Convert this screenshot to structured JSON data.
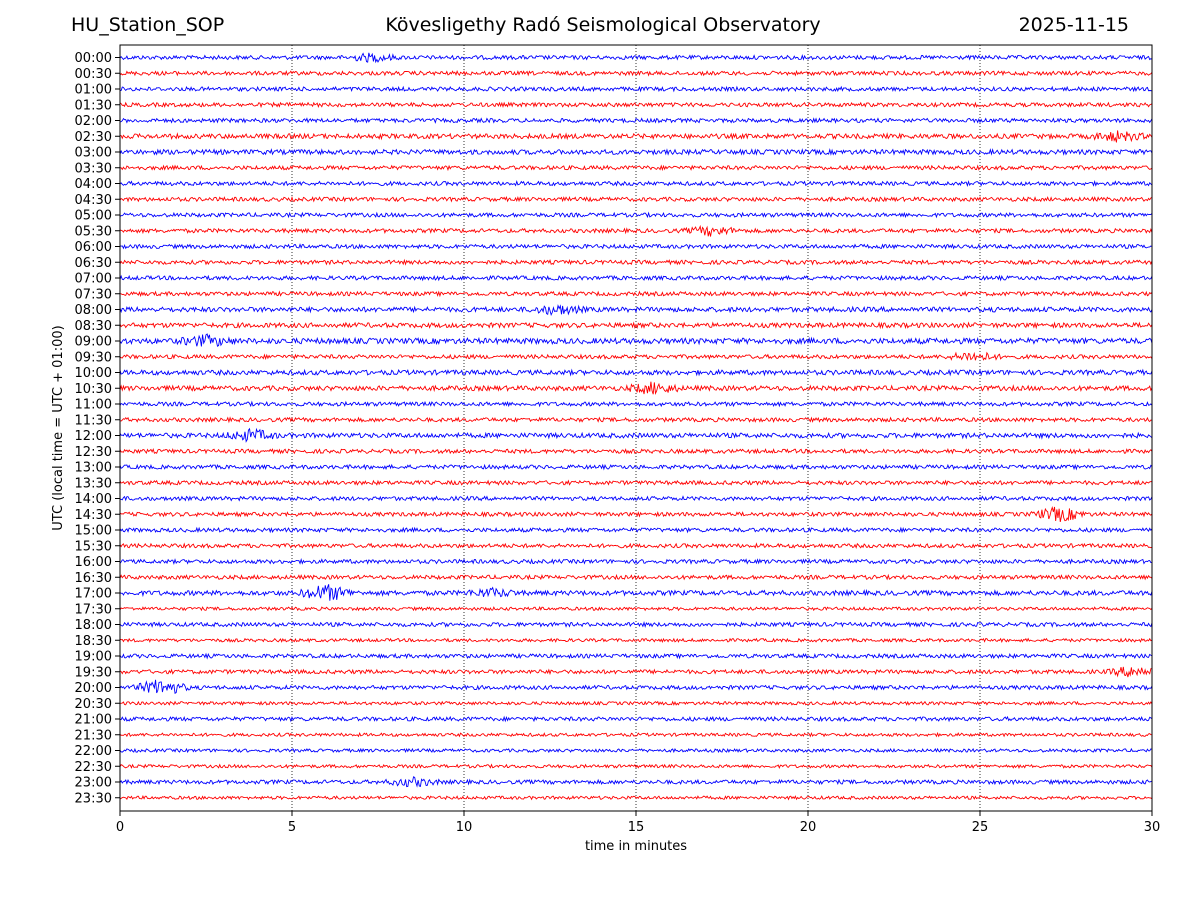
{
  "header": {
    "station": "HU_Station_SOP",
    "observatory": "Kövesligethy Radó Seismological Observatory",
    "date": "2025-11-15"
  },
  "chart_data": {
    "type": "line",
    "title": "Kövesligethy Radó Seismological Observatory",
    "xlabel": "time in minutes",
    "ylabel": "UTC (local time = UTC + 01:00)",
    "xlim": [
      0,
      30
    ],
    "xticks": [
      0,
      5,
      10,
      15,
      20,
      25,
      30
    ],
    "grid": "vertical dotted lines at x ticks",
    "colors": {
      "odd_rows": "#0000ff",
      "even_rows": "#ff0000"
    },
    "series": [
      {
        "name": "00:00",
        "color": "#0000ff",
        "amplitude": 0.25,
        "events": [
          {
            "x": 7.3,
            "amp": 0.4
          }
        ]
      },
      {
        "name": "00:30",
        "color": "#ff0000",
        "amplitude": 0.25,
        "events": []
      },
      {
        "name": "01:00",
        "color": "#0000ff",
        "amplitude": 0.25,
        "events": []
      },
      {
        "name": "01:30",
        "color": "#ff0000",
        "amplitude": 0.25,
        "events": []
      },
      {
        "name": "02:00",
        "color": "#0000ff",
        "amplitude": 0.25,
        "events": []
      },
      {
        "name": "02:30",
        "color": "#ff0000",
        "amplitude": 0.3,
        "events": [
          {
            "x": 29.0,
            "amp": 0.5
          }
        ]
      },
      {
        "name": "03:00",
        "color": "#0000ff",
        "amplitude": 0.3,
        "events": []
      },
      {
        "name": "03:30",
        "color": "#ff0000",
        "amplitude": 0.25,
        "events": []
      },
      {
        "name": "04:00",
        "color": "#0000ff",
        "amplitude": 0.25,
        "events": []
      },
      {
        "name": "04:30",
        "color": "#ff0000",
        "amplitude": 0.25,
        "events": []
      },
      {
        "name": "05:00",
        "color": "#0000ff",
        "amplitude": 0.25,
        "events": []
      },
      {
        "name": "05:30",
        "color": "#ff0000",
        "amplitude": 0.25,
        "events": [
          {
            "x": 17.2,
            "amp": 0.5
          }
        ]
      },
      {
        "name": "06:00",
        "color": "#0000ff",
        "amplitude": 0.25,
        "events": []
      },
      {
        "name": "06:30",
        "color": "#ff0000",
        "amplitude": 0.25,
        "events": []
      },
      {
        "name": "07:00",
        "color": "#0000ff",
        "amplitude": 0.25,
        "events": []
      },
      {
        "name": "07:30",
        "color": "#ff0000",
        "amplitude": 0.25,
        "events": []
      },
      {
        "name": "08:00",
        "color": "#0000ff",
        "amplitude": 0.3,
        "events": [
          {
            "x": 12.7,
            "amp": 0.5
          }
        ]
      },
      {
        "name": "08:30",
        "color": "#ff0000",
        "amplitude": 0.3,
        "events": []
      },
      {
        "name": "09:00",
        "color": "#0000ff",
        "amplitude": 0.35,
        "events": [
          {
            "x": 2.5,
            "amp": 0.55
          }
        ]
      },
      {
        "name": "09:30",
        "color": "#ff0000",
        "amplitude": 0.25,
        "events": [
          {
            "x": 24.8,
            "amp": 0.5
          }
        ]
      },
      {
        "name": "10:00",
        "color": "#0000ff",
        "amplitude": 0.3,
        "events": []
      },
      {
        "name": "10:30",
        "color": "#ff0000",
        "amplitude": 0.3,
        "events": [
          {
            "x": 15.5,
            "amp": 0.6
          }
        ]
      },
      {
        "name": "11:00",
        "color": "#0000ff",
        "amplitude": 0.25,
        "events": []
      },
      {
        "name": "11:30",
        "color": "#ff0000",
        "amplitude": 0.25,
        "events": []
      },
      {
        "name": "12:00",
        "color": "#0000ff",
        "amplitude": 0.3,
        "events": [
          {
            "x": 3.8,
            "amp": 0.6
          }
        ]
      },
      {
        "name": "12:30",
        "color": "#ff0000",
        "amplitude": 0.25,
        "events": []
      },
      {
        "name": "13:00",
        "color": "#0000ff",
        "amplitude": 0.25,
        "events": []
      },
      {
        "name": "13:30",
        "color": "#ff0000",
        "amplitude": 0.25,
        "events": []
      },
      {
        "name": "14:00",
        "color": "#0000ff",
        "amplitude": 0.25,
        "events": []
      },
      {
        "name": "14:30",
        "color": "#ff0000",
        "amplitude": 0.25,
        "events": [
          {
            "x": 27.3,
            "amp": 0.8
          }
        ]
      },
      {
        "name": "15:00",
        "color": "#0000ff",
        "amplitude": 0.25,
        "events": []
      },
      {
        "name": "15:30",
        "color": "#ff0000",
        "amplitude": 0.25,
        "events": []
      },
      {
        "name": "16:00",
        "color": "#0000ff",
        "amplitude": 0.25,
        "events": []
      },
      {
        "name": "16:30",
        "color": "#ff0000",
        "amplitude": 0.25,
        "events": []
      },
      {
        "name": "17:00",
        "color": "#0000ff",
        "amplitude": 0.3,
        "events": [
          {
            "x": 6.0,
            "amp": 0.9
          },
          {
            "x": 10.8,
            "amp": 0.4
          }
        ]
      },
      {
        "name": "17:30",
        "color": "#ff0000",
        "amplitude": 0.2,
        "events": []
      },
      {
        "name": "18:00",
        "color": "#0000ff",
        "amplitude": 0.25,
        "events": []
      },
      {
        "name": "18:30",
        "color": "#ff0000",
        "amplitude": 0.2,
        "events": []
      },
      {
        "name": "19:00",
        "color": "#0000ff",
        "amplitude": 0.25,
        "events": []
      },
      {
        "name": "19:30",
        "color": "#ff0000",
        "amplitude": 0.25,
        "events": [
          {
            "x": 29.5,
            "amp": 0.6
          }
        ]
      },
      {
        "name": "20:00",
        "color": "#0000ff",
        "amplitude": 0.25,
        "events": [
          {
            "x": 1.2,
            "amp": 0.9
          }
        ]
      },
      {
        "name": "20:30",
        "color": "#ff0000",
        "amplitude": 0.2,
        "events": []
      },
      {
        "name": "21:00",
        "color": "#0000ff",
        "amplitude": 0.25,
        "events": []
      },
      {
        "name": "21:30",
        "color": "#ff0000",
        "amplitude": 0.2,
        "events": []
      },
      {
        "name": "22:00",
        "color": "#0000ff",
        "amplitude": 0.2,
        "events": []
      },
      {
        "name": "22:30",
        "color": "#ff0000",
        "amplitude": 0.2,
        "events": []
      },
      {
        "name": "23:00",
        "color": "#0000ff",
        "amplitude": 0.25,
        "events": [
          {
            "x": 8.5,
            "amp": 0.45
          }
        ]
      },
      {
        "name": "23:30",
        "color": "#ff0000",
        "amplitude": 0.2,
        "events": []
      }
    ]
  }
}
